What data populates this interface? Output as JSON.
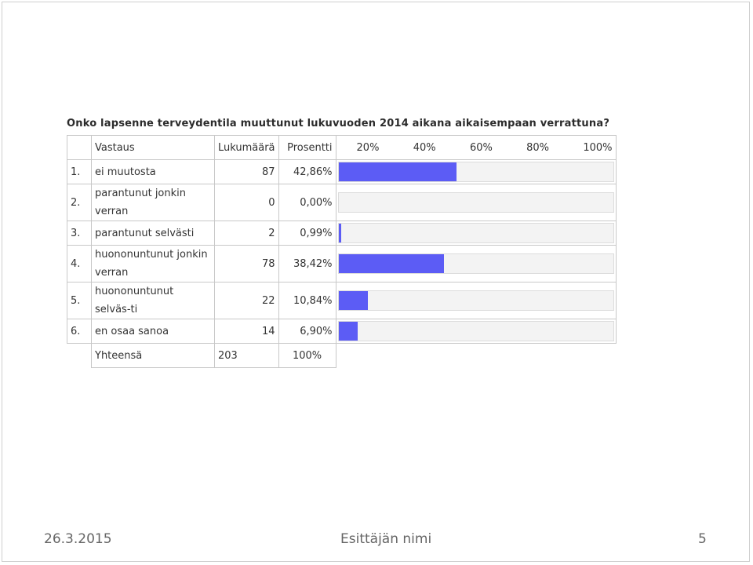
{
  "question": "Onko lapsenne terveydentila muuttunut lukuvuoden 2014 aikana aikaisempaan verrattuna?",
  "headers": {
    "answer": "Vastaus",
    "count": "Lukumäärä",
    "percent": "Prosentti",
    "scale": [
      "20%",
      "40%",
      "60%",
      "80%",
      "100%"
    ]
  },
  "rows": [
    {
      "num": "1.",
      "label": "ei muutosta",
      "count": "87",
      "percent": "42,86%"
    },
    {
      "num": "2.",
      "label": "parantunut jonkin verran",
      "count": "0",
      "percent": "0,00%"
    },
    {
      "num": "3.",
      "label": "parantunut selvästi",
      "count": "2",
      "percent": "0,99%"
    },
    {
      "num": "4.",
      "label": "huononuntunut jonkin verran",
      "count": "78",
      "percent": "38,42%"
    },
    {
      "num": "5.",
      "label": "huononuntunut selväs-ti",
      "count": "22",
      "percent": "10,84%"
    },
    {
      "num": "6.",
      "label": "en osaa sanoa",
      "count": "14",
      "percent": "6,90%"
    }
  ],
  "total": {
    "label": "Yhteensä",
    "count": "203",
    "percent": "100%"
  },
  "chart_data": {
    "type": "bar",
    "orientation": "horizontal",
    "categories": [
      "ei muutosta",
      "parantunut jonkin verran",
      "parantunut selvästi",
      "huononuntunut jonkin verran",
      "huononuntunut selväs-ti",
      "en osaa sanoa"
    ],
    "values": [
      42.86,
      0.0,
      0.99,
      38.42,
      10.84,
      6.9
    ],
    "xlim": [
      0,
      100
    ],
    "tick_labels": [
      "20%",
      "40%",
      "60%",
      "80%",
      "100%"
    ],
    "bar_color": "#5c5cf5"
  },
  "footer": {
    "date": "26.3.2015",
    "presenter": "Esittäjän nimi",
    "page": "5"
  }
}
